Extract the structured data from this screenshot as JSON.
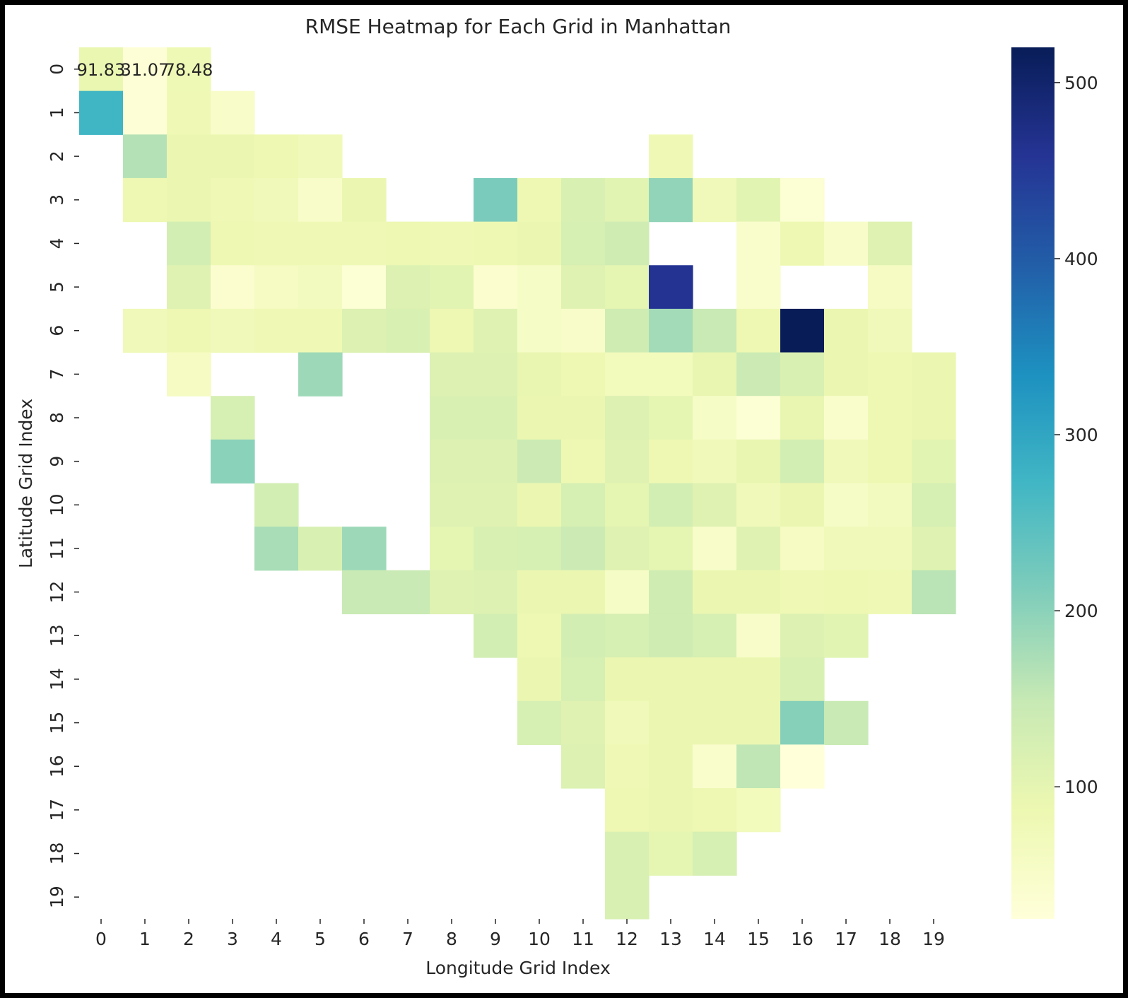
{
  "chart_data": {
    "type": "heatmap",
    "title": "RMSE Heatmap for Each Grid in Manhattan",
    "xlabel": "Longitude Grid Index",
    "ylabel": "Latitude Grid Index",
    "x_ticks": [
      "0",
      "1",
      "2",
      "3",
      "4",
      "5",
      "6",
      "7",
      "8",
      "9",
      "10",
      "11",
      "12",
      "13",
      "14",
      "15",
      "16",
      "17",
      "18",
      "19"
    ],
    "y_ticks": [
      "0",
      "1",
      "2",
      "3",
      "4",
      "5",
      "6",
      "7",
      "8",
      "9",
      "10",
      "11",
      "12",
      "13",
      "14",
      "15",
      "16",
      "17",
      "18",
      "19"
    ],
    "colormap": "YlGnBu",
    "colormap_stops": [
      "#ffffd9",
      "#edf8b1",
      "#c7e9b4",
      "#7fcdbb",
      "#41b6c4",
      "#1d91c0",
      "#225ea8",
      "#253494",
      "#081d58"
    ],
    "value_range": [
      25,
      520
    ],
    "colorbar_ticks": [
      100,
      200,
      300,
      400,
      500
    ],
    "annotations": [
      {
        "row": 0,
        "col": 0,
        "text": "91.83"
      },
      {
        "row": 0,
        "col": 1,
        "text": "31.07"
      },
      {
        "row": 0,
        "col": 2,
        "text": "78.48"
      }
    ],
    "values": [
      [
        91.83,
        31.07,
        78.48,
        null,
        null,
        null,
        null,
        null,
        null,
        null,
        null,
        null,
        null,
        null,
        null,
        null,
        null,
        null,
        null,
        null
      ],
      [
        275,
        30,
        80,
        50,
        null,
        null,
        null,
        null,
        null,
        null,
        null,
        null,
        null,
        null,
        null,
        null,
        null,
        null,
        null,
        null
      ],
      [
        null,
        165,
        90,
        90,
        85,
        75,
        null,
        null,
        null,
        null,
        null,
        null,
        null,
        80,
        null,
        null,
        null,
        null,
        null,
        null
      ],
      [
        null,
        85,
        90,
        80,
        75,
        50,
        90,
        null,
        null,
        215,
        85,
        120,
        105,
        195,
        75,
        105,
        35,
        null,
        null,
        null
      ],
      [
        null,
        null,
        130,
        85,
        80,
        80,
        80,
        85,
        80,
        85,
        90,
        125,
        135,
        null,
        null,
        45,
        85,
        50,
        110,
        null
      ],
      [
        null,
        null,
        110,
        40,
        60,
        65,
        35,
        115,
        105,
        40,
        55,
        110,
        100,
        460,
        null,
        45,
        null,
        null,
        60,
        null
      ],
      [
        null,
        75,
        85,
        75,
        80,
        80,
        115,
        120,
        85,
        110,
        55,
        50,
        135,
        180,
        145,
        85,
        525,
        90,
        75,
        null
      ],
      [
        null,
        null,
        60,
        null,
        null,
        185,
        null,
        null,
        115,
        115,
        95,
        85,
        70,
        70,
        95,
        140,
        120,
        90,
        85,
        90
      ],
      [
        null,
        null,
        null,
        125,
        null,
        null,
        null,
        null,
        120,
        120,
        90,
        90,
        115,
        100,
        55,
        35,
        95,
        45,
        85,
        90
      ],
      [
        null,
        null,
        null,
        200,
        null,
        null,
        null,
        null,
        115,
        115,
        140,
        85,
        110,
        85,
        75,
        95,
        130,
        75,
        85,
        105
      ],
      [
        null,
        null,
        null,
        null,
        130,
        null,
        null,
        null,
        110,
        110,
        90,
        125,
        100,
        130,
        110,
        75,
        90,
        55,
        65,
        125
      ],
      [
        null,
        null,
        null,
        null,
        175,
        120,
        185,
        null,
        100,
        120,
        125,
        140,
        110,
        100,
        50,
        110,
        60,
        75,
        75,
        110
      ],
      [
        null,
        null,
        null,
        null,
        null,
        null,
        145,
        145,
        110,
        115,
        90,
        90,
        55,
        135,
        90,
        90,
        80,
        85,
        80,
        160
      ],
      [
        null,
        null,
        null,
        null,
        null,
        null,
        null,
        null,
        null,
        130,
        85,
        130,
        125,
        135,
        125,
        50,
        115,
        105,
        null,
        null
      ],
      [
        null,
        null,
        null,
        null,
        null,
        null,
        null,
        null,
        null,
        null,
        90,
        125,
        90,
        90,
        90,
        90,
        120,
        null,
        null,
        null
      ],
      [
        null,
        null,
        null,
        null,
        null,
        null,
        null,
        null,
        null,
        null,
        125,
        110,
        75,
        90,
        90,
        90,
        205,
        145,
        null,
        null
      ],
      [
        null,
        null,
        null,
        null,
        null,
        null,
        null,
        null,
        null,
        null,
        null,
        115,
        80,
        90,
        45,
        155,
        25,
        null,
        null,
        null
      ],
      [
        null,
        null,
        null,
        null,
        null,
        null,
        null,
        null,
        null,
        null,
        null,
        null,
        85,
        90,
        85,
        70,
        null,
        null,
        null,
        null
      ],
      [
        null,
        null,
        null,
        null,
        null,
        null,
        null,
        null,
        null,
        null,
        null,
        null,
        120,
        100,
        125,
        null,
        null,
        null,
        null,
        null
      ],
      [
        null,
        null,
        null,
        null,
        null,
        null,
        null,
        null,
        null,
        null,
        null,
        null,
        120,
        null,
        null,
        null,
        null,
        null,
        null,
        null
      ]
    ]
  }
}
